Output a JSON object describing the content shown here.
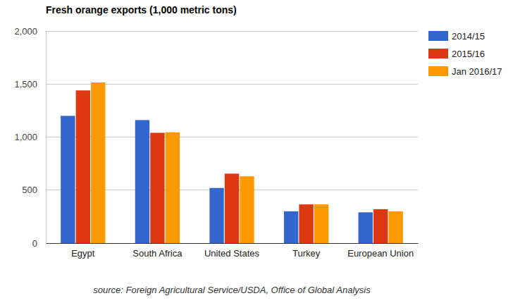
{
  "chart_data": {
    "type": "bar",
    "title": "Fresh orange exports (1,000 metric tons)",
    "annotations": [
      "source: Foreign Agricultural Service/USDA, Office of Global Analysis"
    ],
    "categories": [
      "Egypt",
      "South Africa",
      "United States",
      "Turkey",
      "European Union"
    ],
    "series": [
      {
        "name": "2014/15",
        "color": "#3366cc",
        "values": [
          1200,
          1160,
          520,
          300,
          290
        ]
      },
      {
        "name": "2015/16",
        "color": "#dc3912",
        "values": [
          1440,
          1040,
          655,
          365,
          320
        ]
      },
      {
        "name": "Jan 2016/17",
        "color": "#ff9900",
        "values": [
          1515,
          1045,
          630,
          365,
          300
        ]
      }
    ],
    "ylim": [
      0,
      2000
    ],
    "yticks": [
      0,
      500,
      {
        "value": 1000,
        "label": "1,000"
      },
      {
        "value": 1500,
        "label": "1,500"
      },
      {
        "value": 2000,
        "label": "2,000"
      }
    ],
    "grid": true,
    "legend": "right"
  }
}
